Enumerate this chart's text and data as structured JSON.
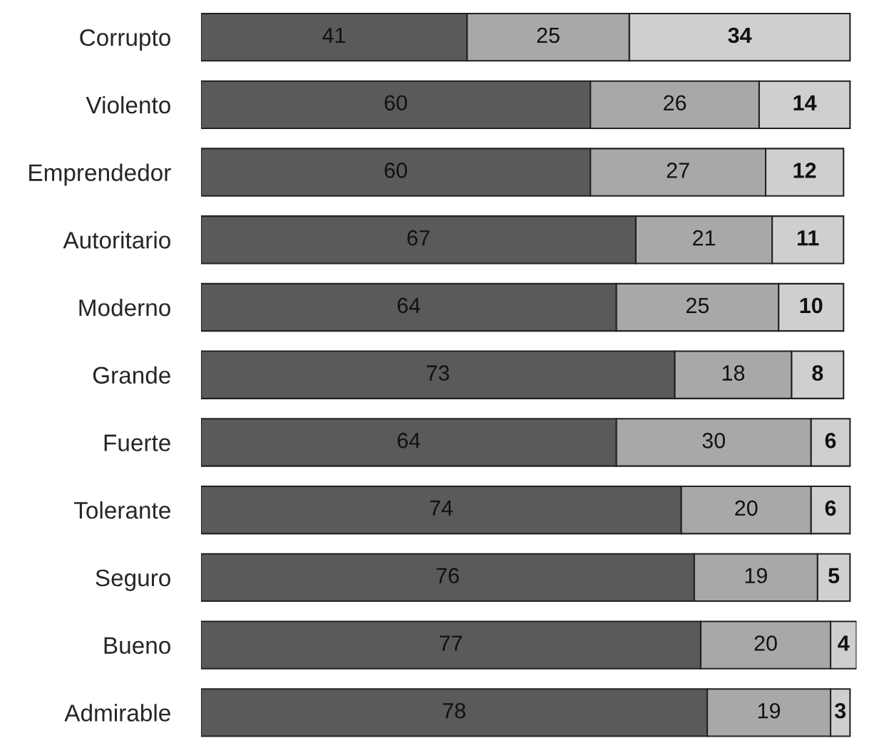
{
  "chart_data": {
    "type": "bar",
    "orientation": "horizontal",
    "stacked": true,
    "data_labels": true,
    "categories": [
      "Corrupto",
      "Violento",
      "Emprendedor",
      "Autoritario",
      "Moderno",
      "Grande",
      "Fuerte",
      "Tolerante",
      "Seguro",
      "Bueno",
      "Admirable"
    ],
    "series": [
      {
        "color": "#5a5a5a",
        "values": [
          41,
          60,
          60,
          67,
          64,
          73,
          64,
          74,
          76,
          77,
          78
        ]
      },
      {
        "color": "#a8a8a8",
        "values": [
          25,
          26,
          27,
          21,
          25,
          18,
          30,
          20,
          19,
          20,
          19
        ]
      },
      {
        "color": "#cfcfcf",
        "values": [
          34,
          14,
          12,
          11,
          10,
          8,
          6,
          6,
          5,
          4,
          3
        ]
      }
    ],
    "grid": false,
    "legend": false
  }
}
